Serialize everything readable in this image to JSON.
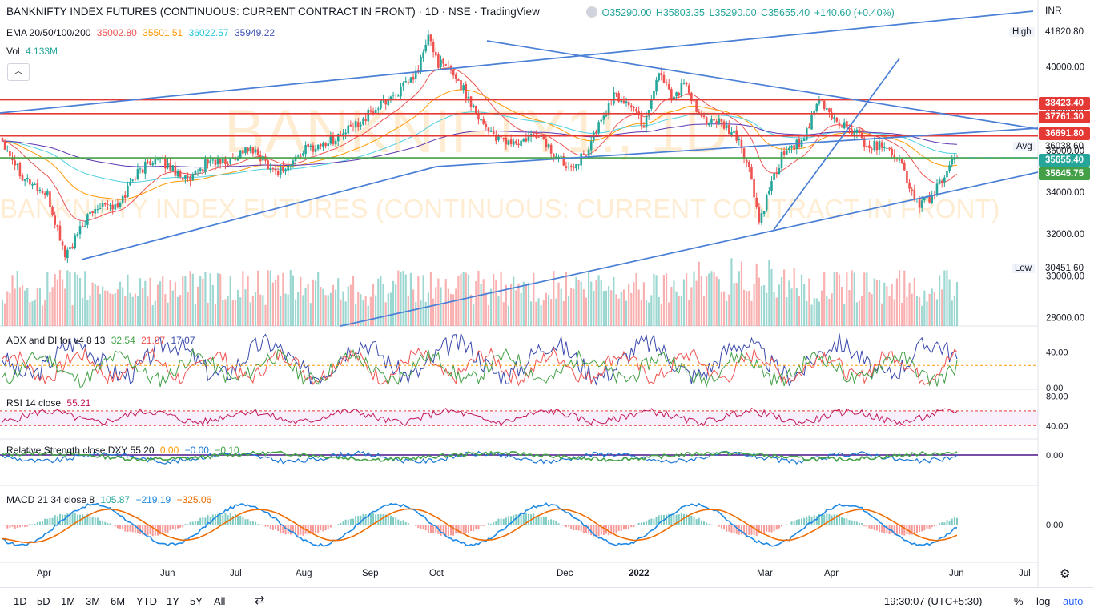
{
  "header": {
    "title": "BANKNIFTY INDEX FUTURES (CONTINUOUS: CURRENT CONTRACT IN FRONT) · 1D · NSE · TradingView",
    "ohlc": {
      "o": "O35290.00",
      "h": "H35803.35",
      "l": "L35290.00",
      "c": "C35655.40",
      "change": "+140.60 (+0.40%)"
    },
    "ema_label": "EMA 20/50/100/200",
    "ema_values": [
      "35002.80",
      "35501.51",
      "36022.57",
      "35949.22"
    ],
    "vol_label": "Vol",
    "vol_value": "4.133M",
    "currency": "INR"
  },
  "colors": {
    "up": "#26a69a",
    "down": "#ef5350",
    "trendline": "#4a7fd6",
    "ema20": "#ef5350",
    "ema50": "#ff9800",
    "ema100": "#4dd0e1",
    "ema200": "#5e35b1",
    "resistance": "#e53935",
    "support": "#43a047",
    "watermark": "#ffcc80"
  },
  "watermark": {
    "big": "BANKNIFTY1!, 1D",
    "small": "BANKNIFTY INDEX FUTURES (CONTINUOUS: CURRENT CONTRACT IN FRONT)"
  },
  "chart_data": [
    {
      "type": "candlestick",
      "title": "BANKNIFTY INDEX FUTURES (CONTINUOUS: CURRENT CONTRACT IN FRONT)",
      "ylim": [
        27600,
        42200
      ],
      "yticks": [
        28000,
        30000,
        32000,
        34000,
        36000,
        38000,
        40000
      ],
      "xticks": [
        "Apr",
        "Jun",
        "Jul",
        "Aug",
        "Sep",
        "Oct",
        "Dec",
        "2022",
        "Mar",
        "Apr",
        "Jun",
        "Jul"
      ],
      "price_waypoints": [
        [
          0,
          36500
        ],
        [
          8,
          34800
        ],
        [
          18,
          33800
        ],
        [
          25,
          31000
        ],
        [
          28,
          31500
        ],
        [
          33,
          32600
        ],
        [
          40,
          33600
        ],
        [
          46,
          33200
        ],
        [
          52,
          34700
        ],
        [
          60,
          35600
        ],
        [
          66,
          35300
        ],
        [
          75,
          34500
        ],
        [
          82,
          35500
        ],
        [
          90,
          35400
        ],
        [
          97,
          36100
        ],
        [
          103,
          35700
        ],
        [
          109,
          35000
        ],
        [
          114,
          35200
        ],
        [
          120,
          36000
        ],
        [
          128,
          36300
        ],
        [
          136,
          36800
        ],
        [
          145,
          37600
        ],
        [
          152,
          38300
        ],
        [
          160,
          39000
        ],
        [
          165,
          39600
        ],
        [
          170,
          41400
        ],
        [
          174,
          40200
        ],
        [
          180,
          39700
        ],
        [
          186,
          38500
        ],
        [
          192,
          37300
        ],
        [
          198,
          36500
        ],
        [
          206,
          36300
        ],
        [
          214,
          36800
        ],
        [
          220,
          35800
        ],
        [
          226,
          35300
        ],
        [
          232,
          35700
        ],
        [
          238,
          37200
        ],
        [
          244,
          38600
        ],
        [
          250,
          38300
        ],
        [
          256,
          37200
        ],
        [
          262,
          39800
        ],
        [
          268,
          38500
        ],
        [
          272,
          39200
        ],
        [
          278,
          37600
        ],
        [
          286,
          37300
        ],
        [
          294,
          36500
        ],
        [
          299,
          34600
        ],
        [
          302,
          32500
        ],
        [
          306,
          34000
        ],
        [
          312,
          36000
        ],
        [
          320,
          36500
        ],
        [
          326,
          38400
        ],
        [
          332,
          37500
        ],
        [
          340,
          36900
        ],
        [
          346,
          36200
        ],
        [
          352,
          36300
        ],
        [
          358,
          35600
        ],
        [
          362,
          34200
        ],
        [
          366,
          33400
        ],
        [
          370,
          33700
        ],
        [
          374,
          34400
        ],
        [
          378,
          35200
        ],
        [
          381,
          35655
        ]
      ],
      "ema_values": {
        "ema20": 35002.8,
        "ema50": 35501.51,
        "ema100": 36022.57,
        "ema200": 35949.22
      },
      "horizontal_levels": [
        {
          "value": 38423.4,
          "label": "38423.40",
          "color": "#e53935"
        },
        {
          "value": 37761.3,
          "label": "37761.30",
          "color": "#e53935"
        },
        {
          "value": 36691.8,
          "label": "36691.80",
          "color": "#e53935"
        },
        {
          "value": 35655.4,
          "label": "35655.40",
          "color": "#26a69a"
        },
        {
          "value": 35645.75,
          "label": "35645.75",
          "color": "#43a047"
        }
      ],
      "high": {
        "label": "High",
        "value": "41820.80"
      },
      "avg": {
        "label": "Avg",
        "value": "36038.60"
      },
      "low": {
        "label": "Low",
        "value": "30451.60"
      }
    },
    {
      "type": "line",
      "title": "ADX and DI for v4 8 13",
      "values": [
        "32.54",
        "21.87",
        "17.07"
      ],
      "yticks": [
        "40.00",
        "0.00"
      ],
      "ylim": [
        0,
        65
      ],
      "level": 25
    },
    {
      "type": "line",
      "title": "RSI 14 close",
      "values": [
        "55.21"
      ],
      "yticks": [
        "80.00",
        "40.00"
      ],
      "ylim": [
        25,
        85
      ],
      "bands": [
        60,
        40
      ]
    },
    {
      "type": "line",
      "title": "Relative Strength close DXY 55 20",
      "values": [
        "0.00",
        "−0.00",
        "−0.10"
      ],
      "yticks": [
        "0.00"
      ],
      "ylim": [
        -0.2,
        0.1
      ]
    },
    {
      "type": "bar",
      "title": "MACD 21 34 close 8",
      "values": [
        "105.87",
        "−219.19",
        "−325.06"
      ],
      "yticks": [
        "0.00"
      ],
      "ylim": [
        -1800,
        1800
      ]
    }
  ],
  "bottom_bar": {
    "timeframes": [
      "1D",
      "5D",
      "1M",
      "3M",
      "6M",
      "YTD",
      "1Y",
      "5Y",
      "All"
    ],
    "time": "19:30:07 (UTC+5:30)",
    "percent": "%",
    "log": "log",
    "auto": "auto"
  }
}
